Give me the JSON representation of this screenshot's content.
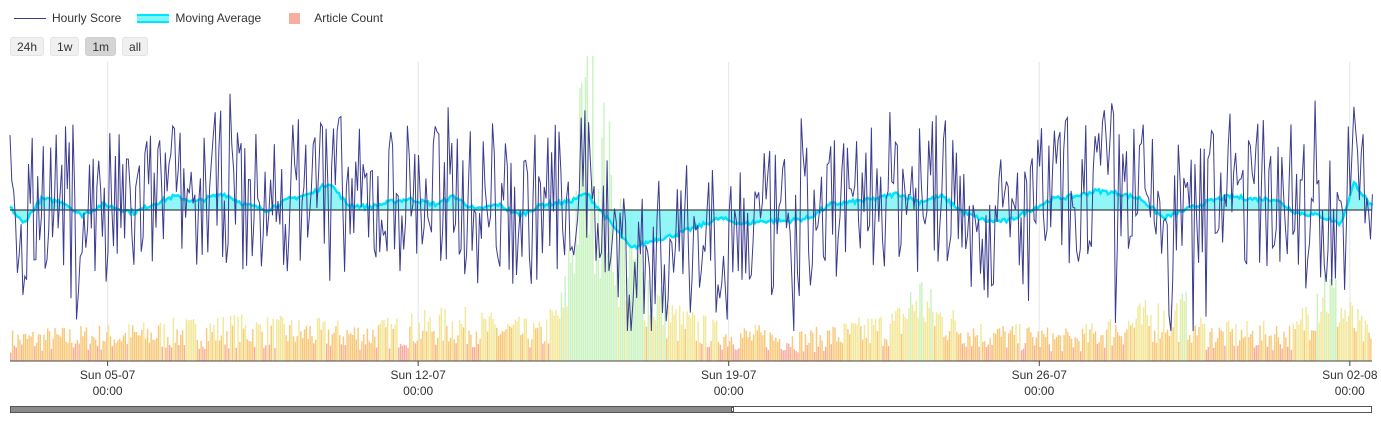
{
  "legend": {
    "hourly_score": "Hourly Score",
    "moving_average": "Moving Average",
    "article_count": "Article Count"
  },
  "range_buttons": [
    {
      "label": "24h",
      "active": false
    },
    {
      "label": "1w",
      "active": false
    },
    {
      "label": "1m",
      "active": true
    },
    {
      "label": "all",
      "active": false
    }
  ],
  "scrollbar": {
    "position_fraction": 0.53
  },
  "colors": {
    "hourly_score": "#3b3b8f",
    "moving_average_line": "#00e5ff",
    "moving_average_fill": "#7ff5f5",
    "article_count_bar": "#f7aea0",
    "article_count_warm": "#f9c97a",
    "article_count_yellow": "#f3e89a",
    "article_count_green": "#c9f3c0",
    "grid": "#e6e6e6",
    "zero_line": "#1a1a1a"
  },
  "chart_data": {
    "type": "line",
    "x_axis": {
      "ticks": [
        {
          "day": "Sun 05-07",
          "time": "00:00"
        },
        {
          "day": "Sun 12-07",
          "time": "00:00"
        },
        {
          "day": "Sun 19-07",
          "time": "00:00"
        },
        {
          "day": "Sun 26-07",
          "time": "00:00"
        },
        {
          "day": "Sun 02-08",
          "time": "00:00"
        }
      ],
      "start_days_before_first_tick": 2.2,
      "span_days": 30.7
    },
    "series": [
      {
        "name": "Hourly Score",
        "style": "thin line",
        "hourly_pattern_note": "highly noisy hourly values oscillating around zero",
        "samples_per_day": 24,
        "amplitude": 1.0
      },
      {
        "name": "Moving Average",
        "style": "thick line with fill to zero",
        "keypoints": [
          [
            0,
            0.05
          ],
          [
            0.3,
            -0.25
          ],
          [
            0.7,
            0.2
          ],
          [
            1.2,
            0.15
          ],
          [
            1.6,
            -0.1
          ],
          [
            2.1,
            0.1
          ],
          [
            2.8,
            -0.05
          ],
          [
            3.2,
            0.1
          ],
          [
            3.7,
            0.25
          ],
          [
            4.2,
            0.15
          ],
          [
            4.8,
            0.3
          ],
          [
            5.3,
            0.1
          ],
          [
            5.8,
            0.0
          ],
          [
            6.3,
            0.2
          ],
          [
            6.8,
            0.3
          ],
          [
            7.2,
            0.5
          ],
          [
            7.6,
            0.1
          ],
          [
            8.1,
            0.05
          ],
          [
            8.6,
            0.15
          ],
          [
            9.0,
            0.2
          ],
          [
            9.6,
            0.1
          ],
          [
            10.0,
            0.25
          ],
          [
            10.5,
            0.0
          ],
          [
            11.0,
            0.1
          ],
          [
            11.5,
            -0.1
          ],
          [
            12.0,
            0.1
          ],
          [
            12.6,
            0.15
          ],
          [
            13.0,
            0.3
          ],
          [
            13.6,
            -0.3
          ],
          [
            14.0,
            -0.7
          ],
          [
            14.5,
            -0.55
          ],
          [
            15.0,
            -0.45
          ],
          [
            15.5,
            -0.3
          ],
          [
            16.0,
            -0.15
          ],
          [
            16.5,
            -0.25
          ],
          [
            17.0,
            -0.2
          ],
          [
            17.5,
            -0.2
          ],
          [
            18.0,
            -0.15
          ],
          [
            18.5,
            0.1
          ],
          [
            19.0,
            0.15
          ],
          [
            19.5,
            0.2
          ],
          [
            20.0,
            0.3
          ],
          [
            20.5,
            0.15
          ],
          [
            21.0,
            0.25
          ],
          [
            21.5,
            -0.05
          ],
          [
            22.0,
            -0.2
          ],
          [
            22.5,
            -0.2
          ],
          [
            23.0,
            0.0
          ],
          [
            23.5,
            0.2
          ],
          [
            24.0,
            0.25
          ],
          [
            24.5,
            0.35
          ],
          [
            25.0,
            0.3
          ],
          [
            25.5,
            0.2
          ],
          [
            26.0,
            -0.15
          ],
          [
            26.5,
            0.0
          ],
          [
            27.0,
            0.15
          ],
          [
            27.5,
            0.25
          ],
          [
            28.0,
            0.2
          ],
          [
            28.5,
            0.2
          ],
          [
            29.0,
            -0.05
          ],
          [
            29.5,
            -0.1
          ],
          [
            30.0,
            -0.25
          ],
          [
            30.3,
            0.5
          ],
          [
            30.7,
            0.05
          ]
        ]
      },
      {
        "name": "Article Count",
        "style": "bars",
        "keypoints": [
          [
            0,
            0.08
          ],
          [
            3.0,
            0.1
          ],
          [
            5.0,
            0.12
          ],
          [
            8.0,
            0.1
          ],
          [
            10.0,
            0.14
          ],
          [
            12.0,
            0.1
          ],
          [
            12.5,
            0.2
          ],
          [
            13.0,
            0.95
          ],
          [
            13.3,
            0.75
          ],
          [
            13.8,
            0.45
          ],
          [
            14.5,
            0.25
          ],
          [
            15.0,
            0.15
          ],
          [
            16.0,
            0.1
          ],
          [
            18.0,
            0.08
          ],
          [
            19.5,
            0.12
          ],
          [
            20.0,
            0.14
          ],
          [
            20.5,
            0.25
          ],
          [
            20.8,
            0.18
          ],
          [
            21.5,
            0.12
          ],
          [
            22.0,
            0.1
          ],
          [
            24.0,
            0.08
          ],
          [
            25.5,
            0.15
          ],
          [
            26.5,
            0.18
          ],
          [
            27.0,
            0.1
          ],
          [
            29.0,
            0.1
          ],
          [
            29.6,
            0.3
          ],
          [
            30.0,
            0.2
          ],
          [
            30.7,
            0.08
          ]
        ]
      }
    ],
    "y_axis": {
      "visible": false,
      "zero_line": true
    },
    "grid": {
      "vertical": true,
      "horizontal": false
    },
    "legend_position": "top-left"
  }
}
